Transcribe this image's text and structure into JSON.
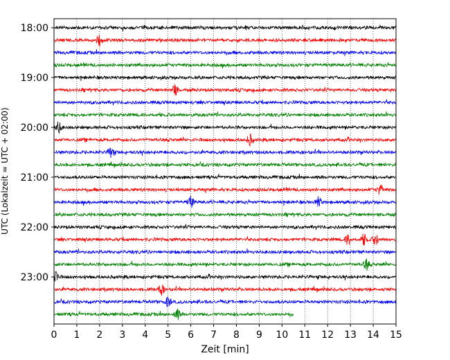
{
  "chart_data": {
    "type": "line",
    "title": "",
    "xlabel": "Zeit  [min]",
    "ylabel": "UTC (Lokalzeit = UTC + 02:00)",
    "xlim": [
      0,
      15
    ],
    "x_ticks": [
      "0",
      "1",
      "2",
      "3",
      "4",
      "5",
      "6",
      "7",
      "8",
      "9",
      "10",
      "11",
      "12",
      "13",
      "14",
      "15"
    ],
    "y_ticks": [
      "18:00",
      "19:00",
      "20:00",
      "21:00",
      "22:00",
      "23:00"
    ],
    "row_minutes": 15,
    "grid_x": "dotted",
    "colors": [
      "#000000",
      "#ff0000",
      "#0000ff",
      "#008000"
    ],
    "rows": [
      {
        "start": "18:00",
        "color": "#000000",
        "x_end": 15
      },
      {
        "start": "18:15",
        "color": "#ff0000",
        "x_end": 15
      },
      {
        "start": "18:30",
        "color": "#0000ff",
        "x_end": 15
      },
      {
        "start": "18:45",
        "color": "#008000",
        "x_end": 15
      },
      {
        "start": "19:00",
        "color": "#000000",
        "x_end": 15
      },
      {
        "start": "19:15",
        "color": "#ff0000",
        "x_end": 15
      },
      {
        "start": "19:30",
        "color": "#0000ff",
        "x_end": 15
      },
      {
        "start": "19:45",
        "color": "#008000",
        "x_end": 15
      },
      {
        "start": "20:00",
        "color": "#000000",
        "x_end": 15
      },
      {
        "start": "20:15",
        "color": "#ff0000",
        "x_end": 15
      },
      {
        "start": "20:30",
        "color": "#0000ff",
        "x_end": 15
      },
      {
        "start": "20:45",
        "color": "#008000",
        "x_end": 15
      },
      {
        "start": "21:00",
        "color": "#000000",
        "x_end": 15
      },
      {
        "start": "21:15",
        "color": "#ff0000",
        "x_end": 15
      },
      {
        "start": "21:30",
        "color": "#0000ff",
        "x_end": 15
      },
      {
        "start": "21:45",
        "color": "#008000",
        "x_end": 15
      },
      {
        "start": "22:00",
        "color": "#000000",
        "x_end": 15
      },
      {
        "start": "22:15",
        "color": "#ff0000",
        "x_end": 15
      },
      {
        "start": "22:30",
        "color": "#0000ff",
        "x_end": 15
      },
      {
        "start": "22:45",
        "color": "#008000",
        "x_end": 15
      },
      {
        "start": "23:00",
        "color": "#000000",
        "x_end": 15
      },
      {
        "start": "23:15",
        "color": "#ff0000",
        "x_end": 15
      },
      {
        "start": "23:30",
        "color": "#0000ff",
        "x_end": 15
      },
      {
        "start": "23:45",
        "color": "#008000",
        "x_end": 10.5
      }
    ],
    "events": [
      {
        "row": "18:15",
        "x": 2.0
      },
      {
        "row": "19:15",
        "x": 5.3
      },
      {
        "row": "20:00",
        "x": 0.2
      },
      {
        "row": "20:15",
        "x": 8.6
      },
      {
        "row": "20:30",
        "x": 2.5
      },
      {
        "row": "21:15",
        "x": 14.3
      },
      {
        "row": "21:30",
        "x": 6.0
      },
      {
        "row": "21:30",
        "x": 11.6
      },
      {
        "row": "22:15",
        "x": 12.9
      },
      {
        "row": "22:15",
        "x": 13.6
      },
      {
        "row": "22:15",
        "x": 14.1
      },
      {
        "row": "22:45",
        "x": 13.7
      },
      {
        "row": "23:00",
        "x": 0.1
      },
      {
        "row": "23:15",
        "x": 4.7
      },
      {
        "row": "23:30",
        "x": 5.0
      },
      {
        "row": "23:45",
        "x": 5.4
      }
    ]
  }
}
